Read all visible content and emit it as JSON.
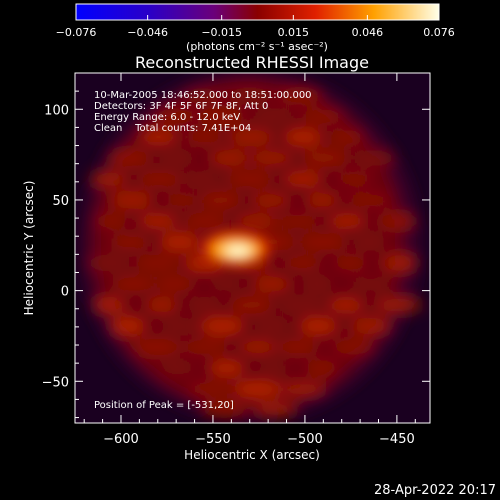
{
  "colorbar": {
    "tick_labels": [
      "-0.076",
      "-0.046",
      "-0.015",
      "0.015",
      "0.046",
      "0.076"
    ],
    "unit_label": "(photons cm⁻² s⁻¹ asec⁻²)"
  },
  "chart_data": {
    "type": "heatmap",
    "title": "Reconstructed RHESSI Image",
    "xlabel": "Heliocentric X (arcsec)",
    "ylabel": "Heliocentric Y (arcsec)",
    "xlim": [
      -625,
      -432
    ],
    "ylim": [
      -73,
      120
    ],
    "x_ticks": [
      -600,
      -550,
      -500,
      -450
    ],
    "y_ticks": [
      -50,
      0,
      50,
      100
    ],
    "colorbar_range": [
      -0.076,
      0.076
    ],
    "annotations": [
      "10-Mar-2005 18:46:52.000 to 18:51:00.000",
      "Detectors: 3F 4F 5F 6F 7F 8F, Att 0",
      "Energy Range: 6.0 - 12.0 keV",
      "Clean    Total counts: 7.41E+04"
    ],
    "peak_label": "Position of Peak = [-531,20]",
    "peak": {
      "x": -531,
      "y": 20
    }
  },
  "footer": {
    "timestamp": "28-Apr-2022 20:17"
  }
}
